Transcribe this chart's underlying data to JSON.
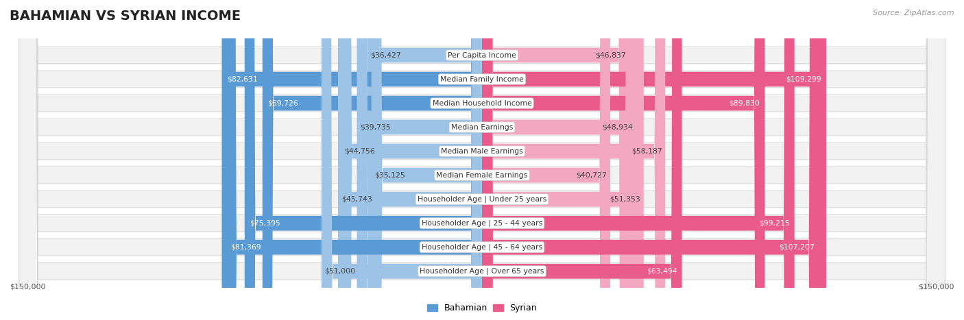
{
  "title": "BAHAMIAN VS SYRIAN INCOME",
  "source": "Source: ZipAtlas.com",
  "categories": [
    "Per Capita Income",
    "Median Family Income",
    "Median Household Income",
    "Median Earnings",
    "Median Male Earnings",
    "Median Female Earnings",
    "Householder Age | Under 25 years",
    "Householder Age | 25 - 44 years",
    "Householder Age | 45 - 64 years",
    "Householder Age | Over 65 years"
  ],
  "bahamian": [
    36427,
    82631,
    69726,
    39735,
    44756,
    35125,
    45743,
    75395,
    81369,
    51000
  ],
  "syrian": [
    46837,
    109299,
    89830,
    48934,
    58187,
    40727,
    51353,
    99215,
    107207,
    63494
  ],
  "bah_dark_threshold": 60000,
  "syr_dark_threshold": 60000,
  "bahamian_color_dark": "#5b9bd5",
  "bahamian_color_light": "#9dc3e6",
  "syrian_color_dark": "#e85b8a",
  "syrian_color_light": "#f4a7c0",
  "max_val": 150000,
  "bg_row_color": "#f2f2f2",
  "bg_row_edge": "#d8d8d8",
  "legend_bahamian_color": "#5b9bd5",
  "legend_syrian_color": "#e85b8a",
  "bottom_label_left": "$150,000",
  "bottom_label_right": "$150,000",
  "title_fontsize": 14,
  "label_fontsize": 7.8,
  "value_fontsize": 7.8
}
